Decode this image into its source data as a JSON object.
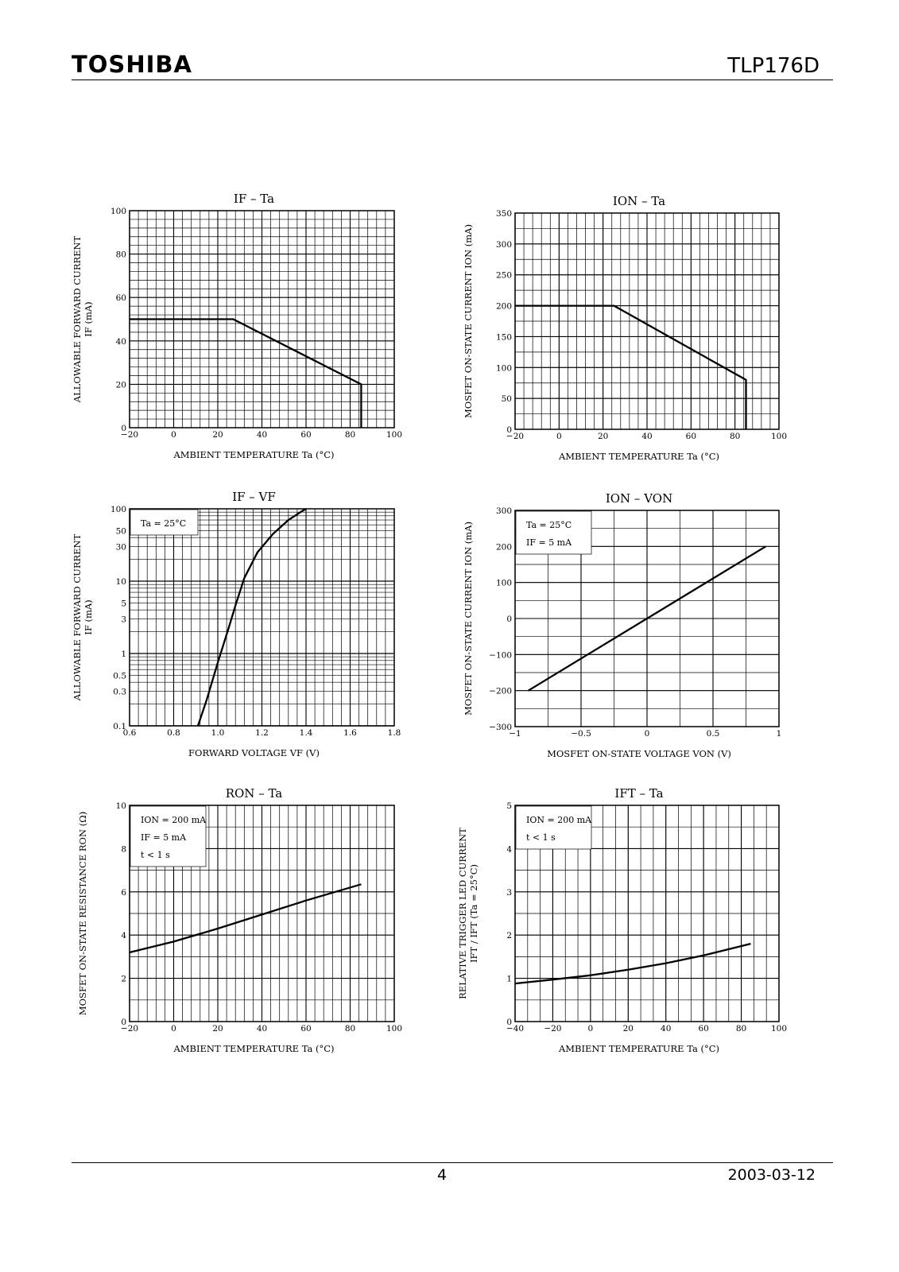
{
  "header": {
    "brand": "TOSHIBA",
    "part_number": "TLP176D"
  },
  "footer": {
    "page": "4",
    "date": "2003-03-12"
  },
  "chart_data": [
    {
      "id": "if-ta",
      "type": "line",
      "title": "IF – Ta",
      "xlabel": "AMBIENT TEMPERATURE   Ta   (°C)",
      "ylabel": [
        "ALLOWABLE FORWARD CURRENT",
        "IF   (mA)"
      ],
      "xlim": [
        -20,
        100
      ],
      "ylim": [
        0,
        100
      ],
      "xticks": [
        -20,
        0,
        20,
        40,
        60,
        80,
        100
      ],
      "xtick_labels": [
        "−20",
        "0",
        "20",
        "40",
        "60",
        "80",
        "100"
      ],
      "yticks": [
        0,
        20,
        40,
        60,
        80,
        100
      ],
      "ytick_labels": [
        "0",
        "20",
        "40",
        "60",
        "80",
        "100"
      ],
      "x_minor": 5,
      "y_minor": 5,
      "annotations": [],
      "series": [
        {
          "x": [
            -20,
            27,
            85,
            85
          ],
          "y": [
            50,
            50,
            20,
            0
          ]
        }
      ]
    },
    {
      "id": "ion-ta",
      "type": "line",
      "title": "ION – Ta",
      "xlabel": "AMBIENT TEMPERATURE   Ta   (°C)",
      "ylabel": [
        "MOSFET ON-STATE CURRENT   ION   (mA)"
      ],
      "xlim": [
        -20,
        100
      ],
      "ylim": [
        0,
        350
      ],
      "xticks": [
        -20,
        0,
        20,
        40,
        60,
        80,
        100
      ],
      "xtick_labels": [
        "−20",
        "0",
        "20",
        "40",
        "60",
        "80",
        "100"
      ],
      "yticks": [
        0,
        50,
        100,
        150,
        200,
        250,
        300,
        350
      ],
      "ytick_labels": [
        "0",
        "50",
        "100",
        "150",
        "200",
        "250",
        "300",
        "350"
      ],
      "x_minor": 5,
      "y_minor": 2,
      "annotations": [],
      "series": [
        {
          "x": [
            -20,
            25,
            85,
            85
          ],
          "y": [
            200,
            200,
            80,
            0
          ]
        }
      ]
    },
    {
      "id": "if-vf",
      "type": "line",
      "title": "IF – VF",
      "xlabel": "FORWARD VOLTAGE   VF   (V)",
      "ylabel": [
        "ALLOWABLE FORWARD CURRENT",
        "IF   (mA)"
      ],
      "xlim": [
        0.6,
        1.8
      ],
      "ylim": [
        0.1,
        100
      ],
      "ylog": true,
      "xticks": [
        0.6,
        0.8,
        1.0,
        1.2,
        1.4,
        1.6,
        1.8
      ],
      "xtick_labels": [
        "0.6",
        "0.8",
        "1.0",
        "1.2",
        "1.4",
        "1.6",
        "1.8"
      ],
      "yticks": [
        0.1,
        0.3,
        0.5,
        1,
        3,
        5,
        10,
        30,
        50,
        100
      ],
      "ytick_labels": [
        "0.1",
        "0.3",
        "0.5",
        "1",
        "3",
        "5",
        "10",
        "30",
        "50",
        "100"
      ],
      "x_minor": 5,
      "annotations": [
        "Ta = 25°C"
      ],
      "series": [
        {
          "x": [
            0.91,
            0.95,
            1.0,
            1.05,
            1.08,
            1.12,
            1.18,
            1.25,
            1.32,
            1.38,
            1.4
          ],
          "y": [
            0.1,
            0.23,
            0.75,
            2.3,
            4.6,
            11,
            25,
            45,
            70,
            92,
            100
          ]
        }
      ]
    },
    {
      "id": "ion-von",
      "type": "line",
      "title": "ION – VON",
      "xlabel": "MOSFET ON-STATE VOLTAGE   VON   (V)",
      "ylabel": [
        "MOSFET ON-STATE CURRENT   ION   (mA)"
      ],
      "xlim": [
        -1,
        1
      ],
      "ylim": [
        -300,
        300
      ],
      "xticks": [
        -1,
        -0.5,
        0,
        0.5,
        1
      ],
      "xtick_labels": [
        "−1",
        "−0.5",
        "0",
        "0.5",
        "1"
      ],
      "yticks": [
        -300,
        -200,
        -100,
        0,
        100,
        200,
        300
      ],
      "ytick_labels": [
        "−300",
        "−200",
        "−100",
        "0",
        "100",
        "200",
        "300"
      ],
      "x_minor": 2,
      "y_minor": 2,
      "annotations": [
        "Ta = 25°C",
        "IF = 5 mA"
      ],
      "series": [
        {
          "x": [
            -0.9,
            0.9
          ],
          "y": [
            -200,
            200
          ]
        }
      ]
    },
    {
      "id": "ron-ta",
      "type": "line",
      "title": "RON – Ta",
      "xlabel": "AMBIENT TEMPERATURE   Ta   (°C)",
      "ylabel": [
        "MOSFET ON-STATE RESISTANCE   RON   (Ω)"
      ],
      "xlim": [
        -20,
        100
      ],
      "ylim": [
        0,
        10
      ],
      "xticks": [
        -20,
        0,
        20,
        40,
        60,
        80,
        100
      ],
      "xtick_labels": [
        "−20",
        "0",
        "20",
        "40",
        "60",
        "80",
        "100"
      ],
      "yticks": [
        0,
        2,
        4,
        6,
        8,
        10
      ],
      "ytick_labels": [
        "0",
        "2",
        "4",
        "6",
        "8",
        "10"
      ],
      "x_minor": 5,
      "y_minor": 2,
      "annotations": [
        "ION = 200 mA",
        "IF = 5 mA",
        "t < 1 s"
      ],
      "series": [
        {
          "x": [
            -20,
            0,
            20,
            40,
            60,
            85
          ],
          "y": [
            3.2,
            3.7,
            4.3,
            4.95,
            5.6,
            6.35
          ]
        }
      ]
    },
    {
      "id": "ift-ta",
      "type": "line",
      "title": "IFT – Ta",
      "xlabel": "AMBIENT TEMPERATURE   Ta   (°C)",
      "ylabel": [
        "RELATIVE TRIGGER LED CURRENT",
        "IFT / IFT   (Ta = 25°C)"
      ],
      "xlim": [
        -40,
        100
      ],
      "ylim": [
        0,
        5
      ],
      "xticks": [
        -40,
        -20,
        0,
        20,
        40,
        60,
        80,
        100
      ],
      "xtick_labels": [
        "−40",
        "−20",
        "0",
        "20",
        "40",
        "60",
        "80",
        "100"
      ],
      "yticks": [
        0,
        1,
        2,
        3,
        4,
        5
      ],
      "ytick_labels": [
        "0",
        "1",
        "2",
        "3",
        "4",
        "5"
      ],
      "x_minor": 3,
      "y_minor": 2,
      "annotations": [
        "ION = 200 mA",
        "t < 1 s"
      ],
      "series": [
        {
          "x": [
            -40,
            -20,
            0,
            20,
            40,
            60,
            85
          ],
          "y": [
            0.88,
            0.97,
            1.07,
            1.2,
            1.35,
            1.53,
            1.8
          ]
        }
      ]
    }
  ]
}
